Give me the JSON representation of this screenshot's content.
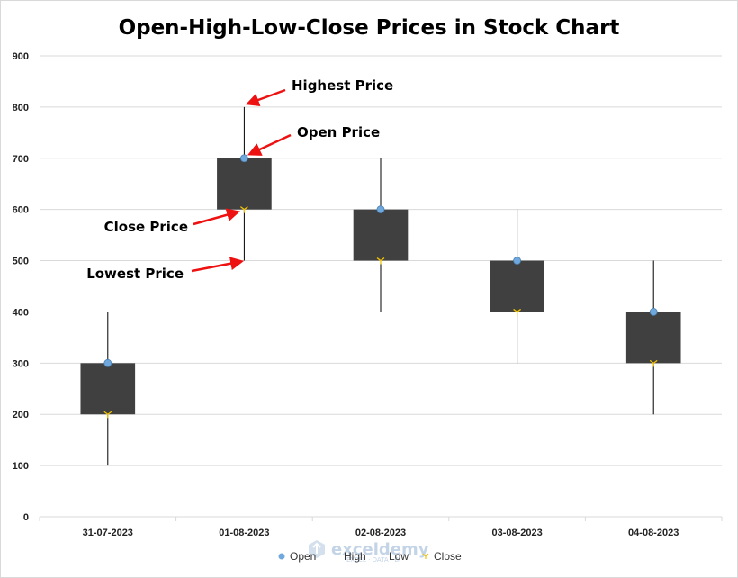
{
  "chart_data": {
    "type": "stock-ohlc",
    "title": "Open-High-Low-Close Prices in Stock Chart",
    "categories": [
      "31-07-2023",
      "01-08-2023",
      "02-08-2023",
      "03-08-2023",
      "04-08-2023"
    ],
    "series": [
      {
        "name": "Open",
        "values": [
          300,
          700,
          600,
          500,
          400
        ]
      },
      {
        "name": "High",
        "values": [
          400,
          800,
          700,
          600,
          500
        ]
      },
      {
        "name": "Low",
        "values": [
          100,
          500,
          400,
          300,
          200
        ]
      },
      {
        "name": "Close",
        "values": [
          200,
          600,
          500,
          400,
          300
        ]
      }
    ],
    "ylim": [
      0,
      900
    ],
    "yticks": [
      0,
      100,
      200,
      300,
      400,
      500,
      600,
      700,
      800,
      900
    ],
    "grid": true,
    "legend_position": "bottom",
    "annotations": [
      {
        "text": "Highest Price",
        "category_index": 1,
        "series": "High"
      },
      {
        "text": "Open Price",
        "category_index": 1,
        "series": "Open"
      },
      {
        "text": "Close Price",
        "category_index": 1,
        "series": "Close"
      },
      {
        "text": "Lowest Price",
        "category_index": 1,
        "series": "Low"
      }
    ],
    "colors": {
      "body": "#404040",
      "wick": "#000000",
      "open_marker": "#6fa8dc",
      "close_marker": "#f2c200",
      "arrow": "#ee1111",
      "grid": "#d9d9d9"
    }
  },
  "watermark": {
    "name": "exceldemy",
    "tagline": "EXCEL · DATA · BI"
  }
}
